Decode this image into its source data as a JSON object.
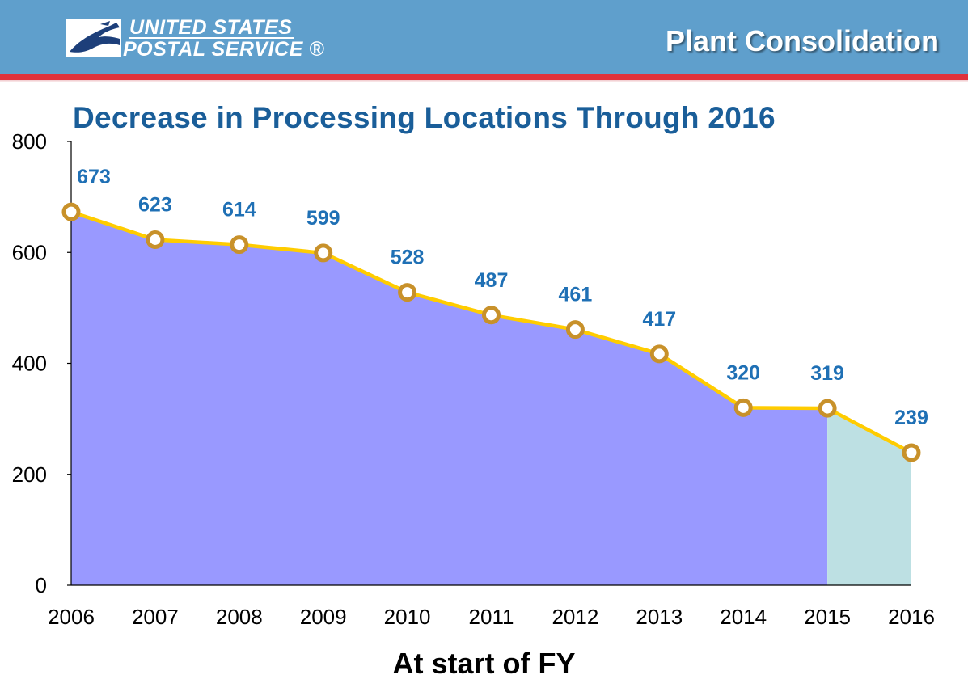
{
  "header": {
    "logo_line1": "UNITED STATES",
    "logo_line2": "POSTAL SERVICE ®",
    "logo_icon": "eagle-icon",
    "page_title": "Plant Consolidation",
    "banner_color": "#5f9fcc",
    "stripe_color": "#e0323b"
  },
  "chart_data": {
    "type": "area",
    "title": "Decrease in Processing Locations Through 2016",
    "xlabel": "At start of FY",
    "ylabel": "",
    "categories": [
      "2006",
      "2007",
      "2008",
      "2009",
      "2010",
      "2011",
      "2012",
      "2013",
      "2014",
      "2015",
      "2016"
    ],
    "series": [
      {
        "values": [
          673,
          623,
          614,
          599,
          528,
          487,
          461,
          417,
          320,
          319,
          239
        ]
      }
    ],
    "data_labels": [
      "673",
      "623",
      "614",
      "599",
      "528",
      "487",
      "461",
      "417",
      "320",
      "319",
      "239"
    ],
    "yticks": [
      0,
      200,
      400,
      600,
      800
    ],
    "ylim": [
      0,
      800
    ],
    "grid": false,
    "legend": "none",
    "colors": {
      "actual_fill": "#9999ff",
      "projected_fill": "#bde0e3",
      "projected_from": "2015",
      "line": "#ffcc00",
      "marker_stroke": "#c8912a",
      "marker_fill": "#ffffff",
      "data_label": "#1f70b5"
    }
  }
}
